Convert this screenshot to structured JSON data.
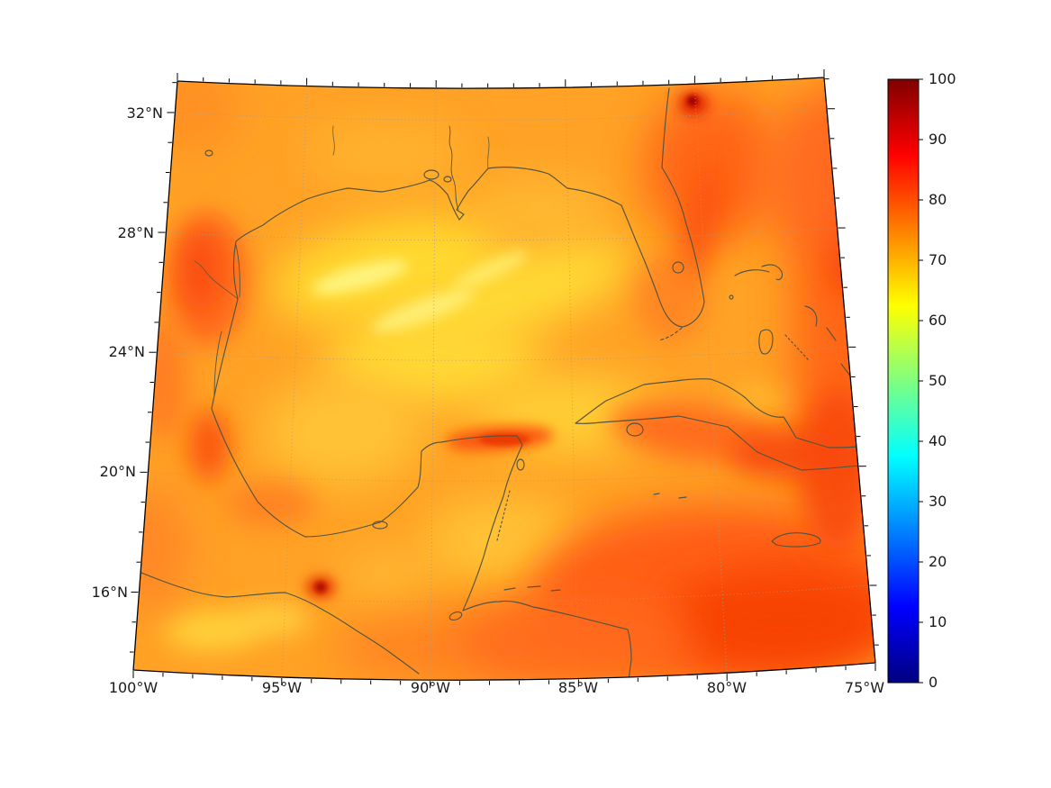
{
  "map": {
    "lat_labels": [
      "32°N",
      "28°N",
      "24°N",
      "20°N",
      "16°N"
    ],
    "lon_labels": [
      "100°W",
      "95°W",
      "90°W",
      "85°W",
      "80°W",
      "75°W"
    ]
  },
  "colorbar": {
    "tick_labels": [
      "100",
      "90",
      "80",
      "70",
      "60",
      "50",
      "40",
      "30",
      "20",
      "10",
      "0"
    ]
  },
  "colors": {
    "background": "#ffffff",
    "coastline": "#55543f",
    "gridline": "#b89868",
    "field_base": "#ffa226",
    "jet_low": "#000080",
    "jet_high": "#800000"
  },
  "chart_data": {
    "type": "heatmap",
    "title": "",
    "description": "Filled geographic field (0-100 scale, jet colormap) over the Gulf of Mexico and western Caribbean on a conic projection with coastlines and dotted lat/lon graticule",
    "x": {
      "label": "",
      "tick_labels": [
        "100°W",
        "95°W",
        "90°W",
        "85°W",
        "80°W",
        "75°W"
      ],
      "range_deg_west": [
        100,
        75
      ]
    },
    "y": {
      "label": "",
      "tick_labels": [
        "32°N",
        "28°N",
        "24°N",
        "20°N",
        "16°N"
      ],
      "range_deg_north": [
        14,
        33
      ]
    },
    "colorbar": {
      "min": 0,
      "max": 100,
      "ticks": [
        0,
        10,
        20,
        30,
        40,
        50,
        60,
        70,
        80,
        90,
        100
      ],
      "colormap": "jet",
      "position": "right"
    },
    "grid": "dotted graticule every 5 deg lon / 4 deg lat",
    "field_estimates": [
      {
        "region": "central Gulf of Mexico",
        "value": 62
      },
      {
        "region": "northwest Gulf off Texas coast",
        "value": 82
      },
      {
        "region": "Bay of Campeche near Tampico",
        "value": 80
      },
      {
        "region": "hot spot near Gulf of Tehuantepec",
        "value": 93
      },
      {
        "region": "red band just north of Yucatan",
        "value": 84
      },
      {
        "region": "western Caribbean Sea",
        "value": 84
      },
      {
        "region": "southeast corner of domain",
        "value": 86
      },
      {
        "region": "Atlantic east of Florida",
        "value": 78
      },
      {
        "region": "hot spot near Cape Canaveral",
        "value": 96
      },
      {
        "region": "eastern edge near 75W",
        "value": 82
      },
      {
        "region": "Yucatan Peninsula interior",
        "value": 70
      },
      {
        "region": "north-central Gulf shelf",
        "value": 72
      }
    ]
  }
}
